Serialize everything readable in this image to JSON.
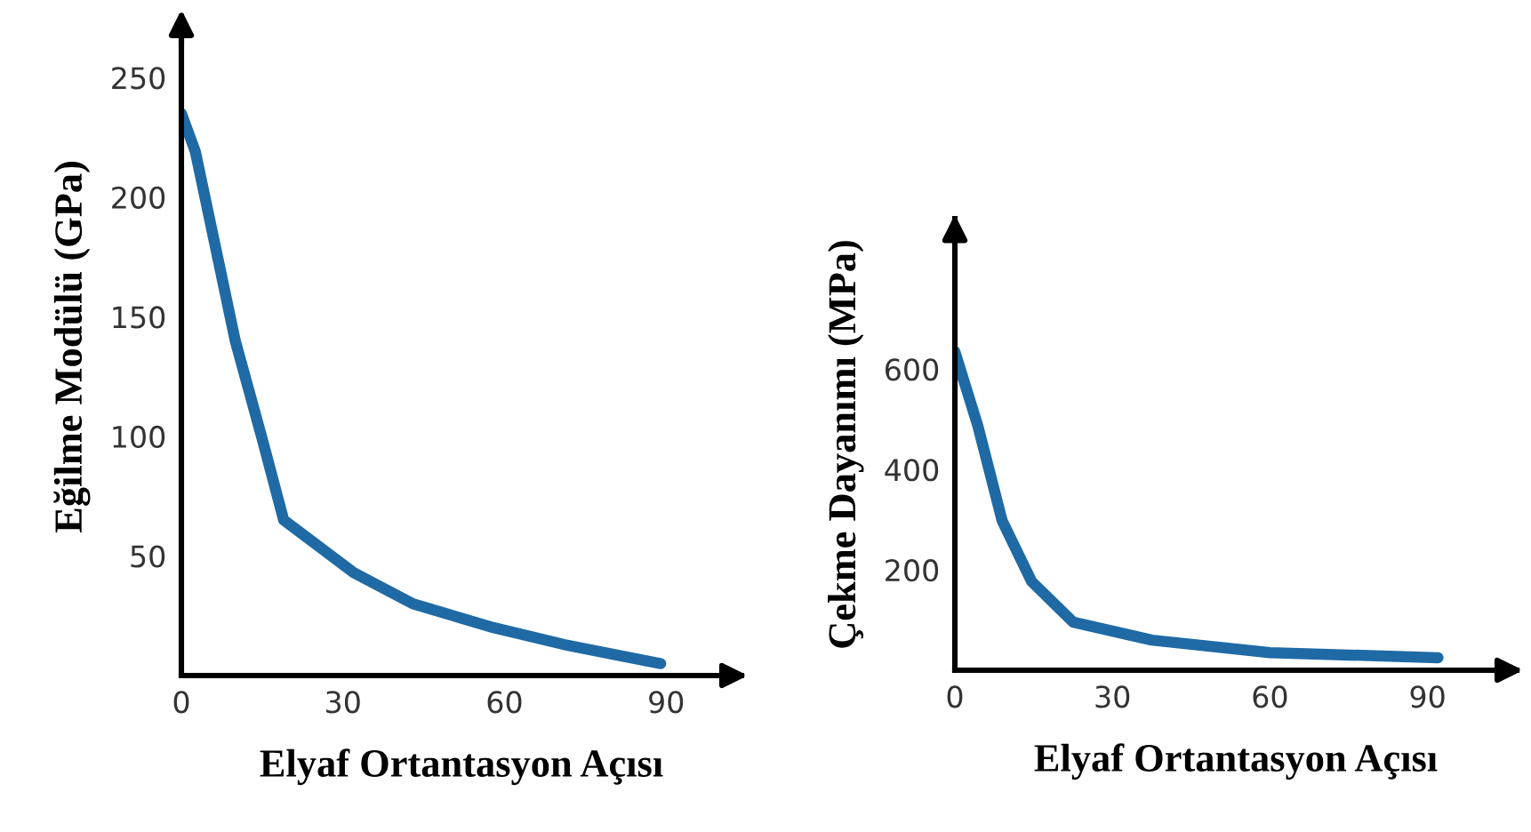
{
  "chart_data": [
    {
      "type": "line",
      "xlabel": "Elyaf Ortantasyon Açısı",
      "ylabel": "Eğilme Modülü (GPa)",
      "xlim": [
        0,
        104
      ],
      "ylim": [
        0,
        275
      ],
      "xticks": [
        0,
        30,
        60,
        90
      ],
      "yticks": [
        50,
        100,
        150,
        200,
        250
      ],
      "grid": false,
      "legend": false,
      "marker": "none",
      "line_style": "solid",
      "series": [
        {
          "color": "#1f6aa5",
          "x": [
            0,
            2.6,
            10,
            15,
            19,
            32,
            43,
            58,
            71,
            89
          ],
          "values": [
            235,
            219,
            140,
            99,
            65,
            43,
            30,
            20,
            13,
            5
          ]
        }
      ]
    },
    {
      "type": "line",
      "xlabel": "Elyaf Ortantasyon Açısı",
      "ylabel": "Çekme Dayanımı (MPa)",
      "xlim": [
        0,
        107
      ],
      "ylim": [
        0,
        900
      ],
      "xticks": [
        0,
        30,
        60,
        90
      ],
      "yticks": [
        200,
        400,
        600
      ],
      "grid": false,
      "legend": false,
      "marker": "none",
      "line_style": "solid",
      "series": [
        {
          "color": "#1f6aa5",
          "x": [
            0,
            4.4,
            9,
            14.6,
            22.5,
            37.5,
            60,
            92
          ],
          "values": [
            635,
            486,
            298,
            177,
            96,
            60,
            35,
            25
          ]
        }
      ]
    }
  ]
}
